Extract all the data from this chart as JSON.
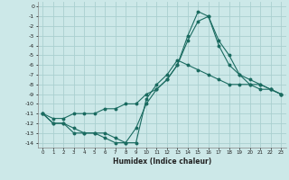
{
  "xlabel": "Humidex (Indice chaleur)",
  "background_color": "#cce8e8",
  "grid_color": "#aacfcf",
  "line_color": "#1a6b60",
  "xlim": [
    -0.5,
    23.5
  ],
  "ylim": [
    -14.5,
    0.5
  ],
  "x_ticks": [
    0,
    1,
    2,
    3,
    4,
    5,
    6,
    7,
    8,
    9,
    10,
    11,
    12,
    13,
    14,
    15,
    16,
    17,
    18,
    19,
    20,
    21,
    22,
    23
  ],
  "y_ticks": [
    0,
    -1,
    -2,
    -3,
    -4,
    -5,
    -6,
    -7,
    -8,
    -9,
    -10,
    -11,
    -12,
    -13,
    -14
  ],
  "line1_x": [
    0,
    1,
    2,
    3,
    4,
    5,
    6,
    7,
    8,
    9,
    10,
    11,
    12,
    13,
    14,
    15,
    16,
    17,
    18,
    19,
    20,
    21,
    22,
    23
  ],
  "line1_y": [
    -11,
    -12,
    -12,
    -12.5,
    -13,
    -13,
    -13,
    -13.5,
    -14,
    -14,
    -9.5,
    -8,
    -7,
    -5.5,
    -6,
    -6.5,
    -7,
    -7.5,
    -8,
    -8,
    -8,
    -8.5,
    -8.5,
    -9
  ],
  "line2_x": [
    0,
    1,
    2,
    3,
    4,
    5,
    6,
    7,
    8,
    9,
    10,
    11,
    12,
    13,
    14,
    15,
    16,
    17,
    18,
    19,
    20,
    21,
    22,
    23
  ],
  "line2_y": [
    -11,
    -11.5,
    -11.5,
    -11,
    -11,
    -11,
    -10.5,
    -10.5,
    -10,
    -10,
    -9,
    -8.5,
    -7.5,
    -6,
    -3.5,
    -1.5,
    -1,
    -3.5,
    -5,
    -7,
    -8,
    -8,
    -8.5,
    -9
  ],
  "line3_x": [
    0,
    1,
    2,
    3,
    4,
    5,
    6,
    7,
    8,
    9,
    10,
    11,
    12,
    13,
    14,
    15,
    16,
    17,
    18,
    19,
    20,
    21,
    22,
    23
  ],
  "line3_y": [
    -11,
    -12,
    -12,
    -13,
    -13,
    -13,
    -13.5,
    -14,
    -14,
    -12.5,
    -10,
    -8.5,
    -7.5,
    -6,
    -3,
    -0.5,
    -1,
    -4,
    -6,
    -7,
    -7.5,
    -8,
    -8.5,
    -9
  ]
}
